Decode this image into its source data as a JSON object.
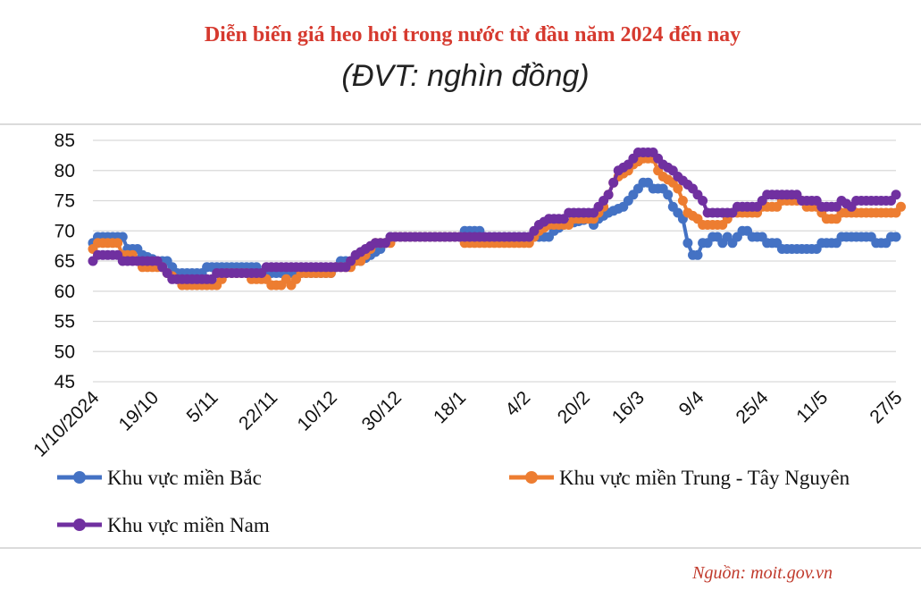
{
  "chart_data": {
    "type": "line",
    "title": "Diễn biến giá heo hơi trong nước từ đầu năm 2024 đến nay",
    "subtitle": "(ĐVT: nghìn đồng)",
    "source": "Nguồn: moit.gov.vn",
    "ylim": [
      45,
      85
    ],
    "yticks": [
      45,
      50,
      55,
      60,
      65,
      70,
      75,
      80,
      85
    ],
    "ytick_labels": [
      "45",
      "50",
      "55",
      "60",
      "65",
      "70",
      "75",
      "80",
      "85"
    ],
    "xlim": [
      0,
      162
    ],
    "xticks": [
      0,
      12,
      24,
      36,
      48,
      61,
      74,
      87,
      99,
      110,
      122,
      135,
      147,
      162
    ],
    "xtick_labels": [
      "1/10/2024",
      "19/10",
      "5/11",
      "22/11",
      "10/12",
      "30/12",
      "18/1",
      "4/2",
      "20/2",
      "16/3",
      "9/4",
      "25/4",
      "11/5",
      "27/5"
    ],
    "legend": "bottom",
    "series": [
      {
        "name": "Khu vực miền Bắc",
        "color": "#4472c4",
        "points": [
          [
            0,
            68
          ],
          [
            1,
            69
          ],
          [
            6,
            69
          ],
          [
            7,
            67
          ],
          [
            9,
            67
          ],
          [
            10,
            66
          ],
          [
            13,
            65
          ],
          [
            15,
            65
          ],
          [
            16,
            64
          ],
          [
            17,
            63
          ],
          [
            22,
            63
          ],
          [
            23,
            64
          ],
          [
            33,
            64
          ],
          [
            34,
            63
          ],
          [
            42,
            63
          ],
          [
            48,
            63
          ],
          [
            49,
            64
          ],
          [
            50,
            65
          ],
          [
            54,
            65
          ],
          [
            56,
            66
          ],
          [
            58,
            67
          ],
          [
            59,
            68
          ],
          [
            60,
            69
          ],
          [
            64,
            69
          ],
          [
            66,
            69
          ],
          [
            74,
            69
          ],
          [
            75,
            70
          ],
          [
            78,
            70
          ],
          [
            79,
            69
          ],
          [
            90,
            69
          ],
          [
            92,
            69
          ],
          [
            93,
            70
          ],
          [
            95,
            71
          ],
          [
            100,
            72
          ],
          [
            101,
            71
          ],
          [
            102,
            72
          ],
          [
            104,
            73
          ],
          [
            107,
            74
          ],
          [
            108,
            75
          ],
          [
            110,
            77
          ],
          [
            111,
            78
          ],
          [
            112,
            78
          ],
          [
            113,
            77
          ],
          [
            115,
            77
          ],
          [
            116,
            76
          ],
          [
            117,
            74
          ],
          [
            118,
            73
          ],
          [
            119,
            72
          ],
          [
            120,
            68
          ],
          [
            121,
            66
          ],
          [
            122,
            66
          ],
          [
            123,
            68
          ],
          [
            124,
            68
          ],
          [
            125,
            69
          ],
          [
            126,
            69
          ],
          [
            127,
            68
          ],
          [
            128,
            69
          ],
          [
            129,
            68
          ],
          [
            130,
            69
          ],
          [
            131,
            70
          ],
          [
            132,
            70
          ],
          [
            133,
            69
          ],
          [
            135,
            69
          ],
          [
            136,
            68
          ],
          [
            138,
            68
          ],
          [
            139,
            67
          ],
          [
            146,
            67
          ],
          [
            147,
            68
          ],
          [
            150,
            68
          ],
          [
            151,
            69
          ],
          [
            157,
            69
          ],
          [
            158,
            68
          ],
          [
            160,
            68
          ],
          [
            161,
            69
          ],
          [
            162,
            69
          ]
        ]
      },
      {
        "name": "Khu vực miền Trung - Tây Nguyên",
        "color": "#ed7d31",
        "points": [
          [
            0,
            67
          ],
          [
            1,
            68
          ],
          [
            5,
            68
          ],
          [
            6,
            66
          ],
          [
            8,
            66
          ],
          [
            9,
            65
          ],
          [
            10,
            64
          ],
          [
            14,
            64
          ],
          [
            15,
            63
          ],
          [
            17,
            62
          ],
          [
            18,
            61
          ],
          [
            25,
            61
          ],
          [
            26,
            62
          ],
          [
            27,
            63
          ],
          [
            31,
            63
          ],
          [
            32,
            62
          ],
          [
            35,
            62
          ],
          [
            36,
            61
          ],
          [
            38,
            61
          ],
          [
            39,
            62
          ],
          [
            40,
            61
          ],
          [
            41,
            62
          ],
          [
            42,
            63
          ],
          [
            48,
            63
          ],
          [
            49,
            64
          ],
          [
            52,
            64
          ],
          [
            53,
            65
          ],
          [
            54,
            65
          ],
          [
            55,
            66
          ],
          [
            56,
            67
          ],
          [
            57,
            68
          ],
          [
            60,
            68
          ],
          [
            61,
            69
          ],
          [
            64,
            69
          ],
          [
            74,
            69
          ],
          [
            75,
            68
          ],
          [
            88,
            68
          ],
          [
            89,
            69
          ],
          [
            90,
            70
          ],
          [
            92,
            71
          ],
          [
            96,
            71
          ],
          [
            97,
            72
          ],
          [
            101,
            72
          ],
          [
            102,
            73
          ],
          [
            103,
            74
          ],
          [
            104,
            76
          ],
          [
            105,
            78
          ],
          [
            106,
            79
          ],
          [
            108,
            80
          ],
          [
            109,
            81
          ],
          [
            111,
            82
          ],
          [
            113,
            82
          ],
          [
            114,
            80
          ],
          [
            115,
            79
          ],
          [
            117,
            78
          ],
          [
            118,
            77
          ],
          [
            119,
            75
          ],
          [
            120,
            73
          ],
          [
            122,
            72
          ],
          [
            123,
            71
          ],
          [
            127,
            71
          ],
          [
            128,
            72
          ],
          [
            129,
            73
          ],
          [
            134,
            73
          ],
          [
            135,
            74
          ],
          [
            138,
            74
          ],
          [
            139,
            75
          ],
          [
            143,
            75
          ],
          [
            144,
            74
          ],
          [
            146,
            74
          ],
          [
            147,
            73
          ],
          [
            148,
            72
          ],
          [
            150,
            72
          ],
          [
            151,
            73
          ],
          [
            162,
            73
          ],
          [
            163,
            74
          ]
        ]
      },
      {
        "name": "Khu vực miền Nam",
        "color": "#7030a0",
        "points": [
          [
            0,
            65
          ],
          [
            1,
            66
          ],
          [
            5,
            66
          ],
          [
            6,
            65
          ],
          [
            8,
            65
          ],
          [
            13,
            65
          ],
          [
            14,
            64
          ],
          [
            15,
            63
          ],
          [
            16,
            62
          ],
          [
            24,
            62
          ],
          [
            25,
            63
          ],
          [
            34,
            63
          ],
          [
            35,
            64
          ],
          [
            42,
            64
          ],
          [
            48,
            64
          ],
          [
            51,
            64
          ],
          [
            52,
            65
          ],
          [
            53,
            66
          ],
          [
            55,
            67
          ],
          [
            57,
            68
          ],
          [
            59,
            68
          ],
          [
            60,
            69
          ],
          [
            88,
            69
          ],
          [
            89,
            70
          ],
          [
            90,
            71
          ],
          [
            92,
            72
          ],
          [
            95,
            72
          ],
          [
            96,
            73
          ],
          [
            101,
            73
          ],
          [
            102,
            74
          ],
          [
            104,
            76
          ],
          [
            105,
            78
          ],
          [
            106,
            80
          ],
          [
            108,
            81
          ],
          [
            109,
            82
          ],
          [
            110,
            83
          ],
          [
            113,
            83
          ],
          [
            114,
            82
          ],
          [
            115,
            81
          ],
          [
            117,
            80
          ],
          [
            118,
            79
          ],
          [
            121,
            77
          ],
          [
            122,
            76
          ],
          [
            123,
            75
          ],
          [
            124,
            73
          ],
          [
            129,
            73
          ],
          [
            130,
            74
          ],
          [
            134,
            74
          ],
          [
            135,
            75
          ],
          [
            136,
            76
          ],
          [
            142,
            76
          ],
          [
            143,
            75
          ],
          [
            146,
            75
          ],
          [
            147,
            74
          ],
          [
            150,
            74
          ],
          [
            151,
            75
          ],
          [
            153,
            74
          ],
          [
            154,
            75
          ],
          [
            161,
            75
          ],
          [
            162,
            76
          ]
        ]
      }
    ]
  }
}
